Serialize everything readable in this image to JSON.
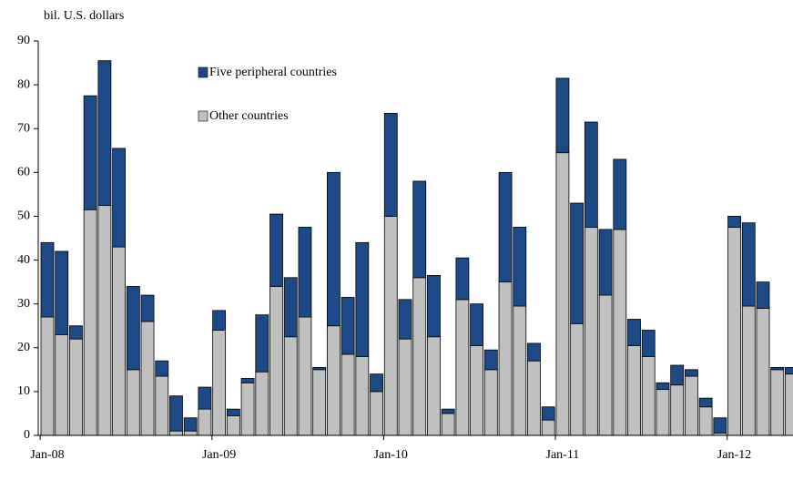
{
  "chart_data": {
    "type": "stacked_bar",
    "y_label": "bil. U.S. dollars",
    "categories": [
      "Jan-08",
      null,
      null,
      null,
      null,
      null,
      null,
      null,
      null,
      null,
      null,
      null,
      "Jan-09",
      null,
      null,
      null,
      null,
      null,
      null,
      null,
      null,
      null,
      null,
      null,
      "Jan-10",
      null,
      null,
      null,
      null,
      null,
      null,
      null,
      null,
      null,
      null,
      null,
      "Jan-11",
      null,
      null,
      null,
      null,
      null,
      null,
      null,
      null,
      null,
      null,
      null,
      "Jan-12",
      null,
      null,
      null,
      null
    ],
    "series": [
      {
        "name": "Other countries",
        "color": "#c0c0c0",
        "values": [
          27,
          23,
          22,
          51.5,
          52.5,
          43,
          15,
          26,
          13.5,
          1,
          1,
          6,
          24,
          4.5,
          12,
          14.5,
          34,
          22.5,
          27,
          15,
          25,
          18.5,
          18,
          10,
          50,
          22,
          36,
          22.5,
          5,
          31,
          20.5,
          15,
          35,
          29.5,
          17,
          3.5,
          64.5,
          25.5,
          47.5,
          32,
          47,
          20.5,
          18,
          10.5,
          11.5,
          13.5,
          6.5,
          0.5,
          47.5,
          29.5,
          29,
          15,
          14
        ]
      },
      {
        "name": "Five peripheral countries",
        "color": "#1c4a87",
        "values": [
          17,
          19,
          3,
          26,
          33,
          22.5,
          19,
          6,
          3.5,
          8,
          3,
          5,
          4.5,
          1.5,
          1,
          13,
          16.5,
          13.5,
          20.5,
          0.5,
          35,
          13,
          26,
          4,
          23.5,
          9,
          22,
          14,
          1,
          9.5,
          9.5,
          4.5,
          25,
          18,
          4,
          3,
          17,
          27.5,
          24,
          15,
          16,
          6,
          6,
          1.5,
          4.5,
          1.5,
          2,
          3.5,
          2.5,
          19,
          6,
          0.5,
          1.5
        ]
      }
    ],
    "ylim": [
      0,
      90
    ],
    "yticks": [
      0,
      10,
      20,
      30,
      40,
      50,
      60,
      70,
      80,
      90
    ]
  }
}
